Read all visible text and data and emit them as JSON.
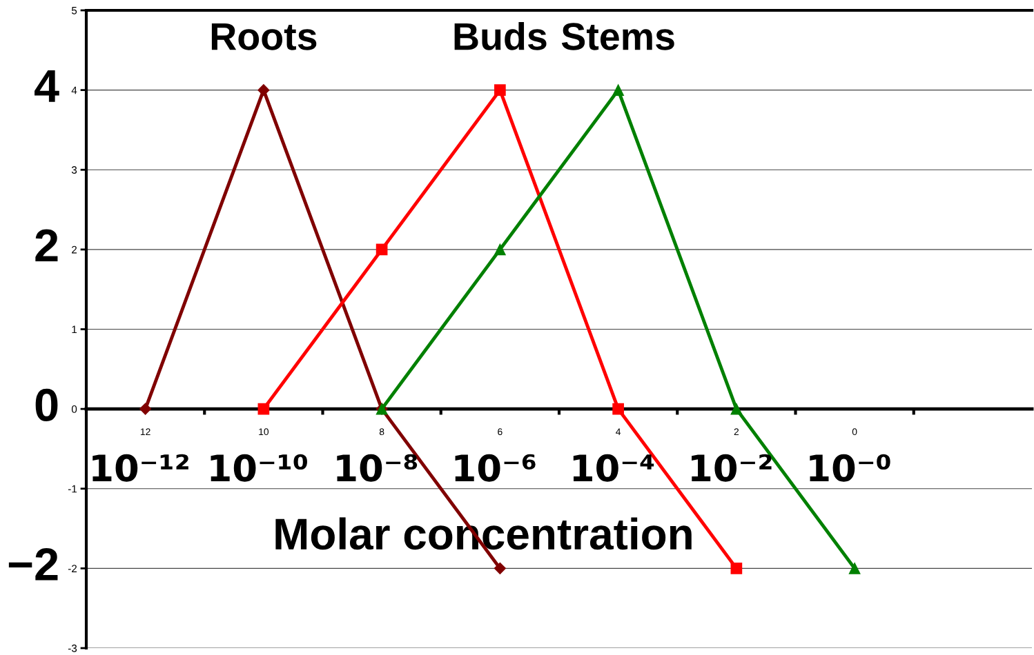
{
  "chart_data": {
    "type": "line",
    "xlabel": "Molar concentration",
    "categories": [
      "12",
      "10",
      "8",
      "6",
      "4",
      "2",
      "0",
      null
    ],
    "series": [
      {
        "name": "Roots",
        "color": "#800000",
        "marker": "diamond",
        "values": [
          0,
          4,
          0,
          -2,
          null,
          null,
          null,
          null
        ]
      },
      {
        "name": "Buds",
        "color": "#ff0000",
        "marker": "square",
        "values": [
          null,
          0,
          2,
          4,
          0,
          -2,
          null,
          null
        ]
      },
      {
        "name": "Stems",
        "color": "#008000",
        "marker": "triangle",
        "values": [
          null,
          null,
          0,
          2,
          4,
          0,
          -2,
          null
        ]
      }
    ],
    "ylim": [
      -3,
      5
    ],
    "yticks": [
      -3,
      -2,
      -1,
      0,
      1,
      2,
      3,
      4,
      5
    ],
    "grid": "y",
    "legend": false,
    "line_style": "solid",
    "annotations": [
      "10⁻¹²",
      "10⁻¹⁰",
      "10⁻⁸",
      "10⁻⁶",
      "10⁻⁴",
      "10⁻²",
      "10⁻⁰",
      "4",
      "2",
      "0",
      "−2"
    ]
  }
}
